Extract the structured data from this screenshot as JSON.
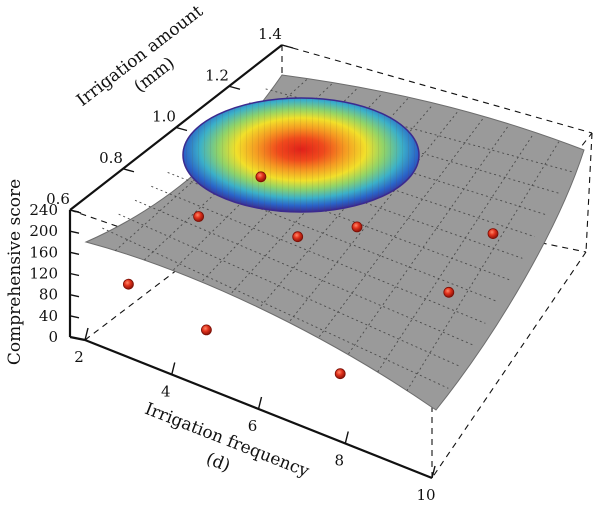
{
  "chart_data": {
    "type": "surface3d",
    "x_axis": {
      "label_line1": "Irrigation frequency",
      "label_line2": "(d)",
      "ticks": [
        "2",
        "4",
        "6",
        "8",
        "10"
      ],
      "range": [
        2,
        10
      ]
    },
    "y_axis": {
      "label_line1": "Irrigation amount",
      "label_line2": "(mm)",
      "ticks": [
        "0.6",
        "0.8",
        "1.0",
        "1.2",
        "1.4"
      ],
      "range": [
        0.6,
        1.4
      ]
    },
    "z_axis": {
      "label": "Comprehensive score",
      "ticks": [
        "0",
        "40",
        "80",
        "120",
        "160",
        "200",
        "240"
      ],
      "range": [
        0,
        240
      ]
    },
    "grid": true,
    "surface_color": "#9a9a9a",
    "optimum_region_colormap": "jet",
    "points": [
      {
        "x": 3.0,
        "y": 0.6,
        "z": 150
      },
      {
        "x": 4.8,
        "y": 0.6,
        "z": 120
      },
      {
        "x": 7.6,
        "y": 0.65,
        "z": 110
      },
      {
        "x": 3.2,
        "y": 0.85,
        "z": 200
      },
      {
        "x": 5.2,
        "y": 0.9,
        "z": 210
      },
      {
        "x": 8.4,
        "y": 0.95,
        "z": 190
      },
      {
        "x": 3.5,
        "y": 1.05,
        "z": 215
      },
      {
        "x": 6.0,
        "y": 1.0,
        "z": 220
      },
      {
        "x": 8.0,
        "y": 1.2,
        "z": 200
      }
    ]
  }
}
